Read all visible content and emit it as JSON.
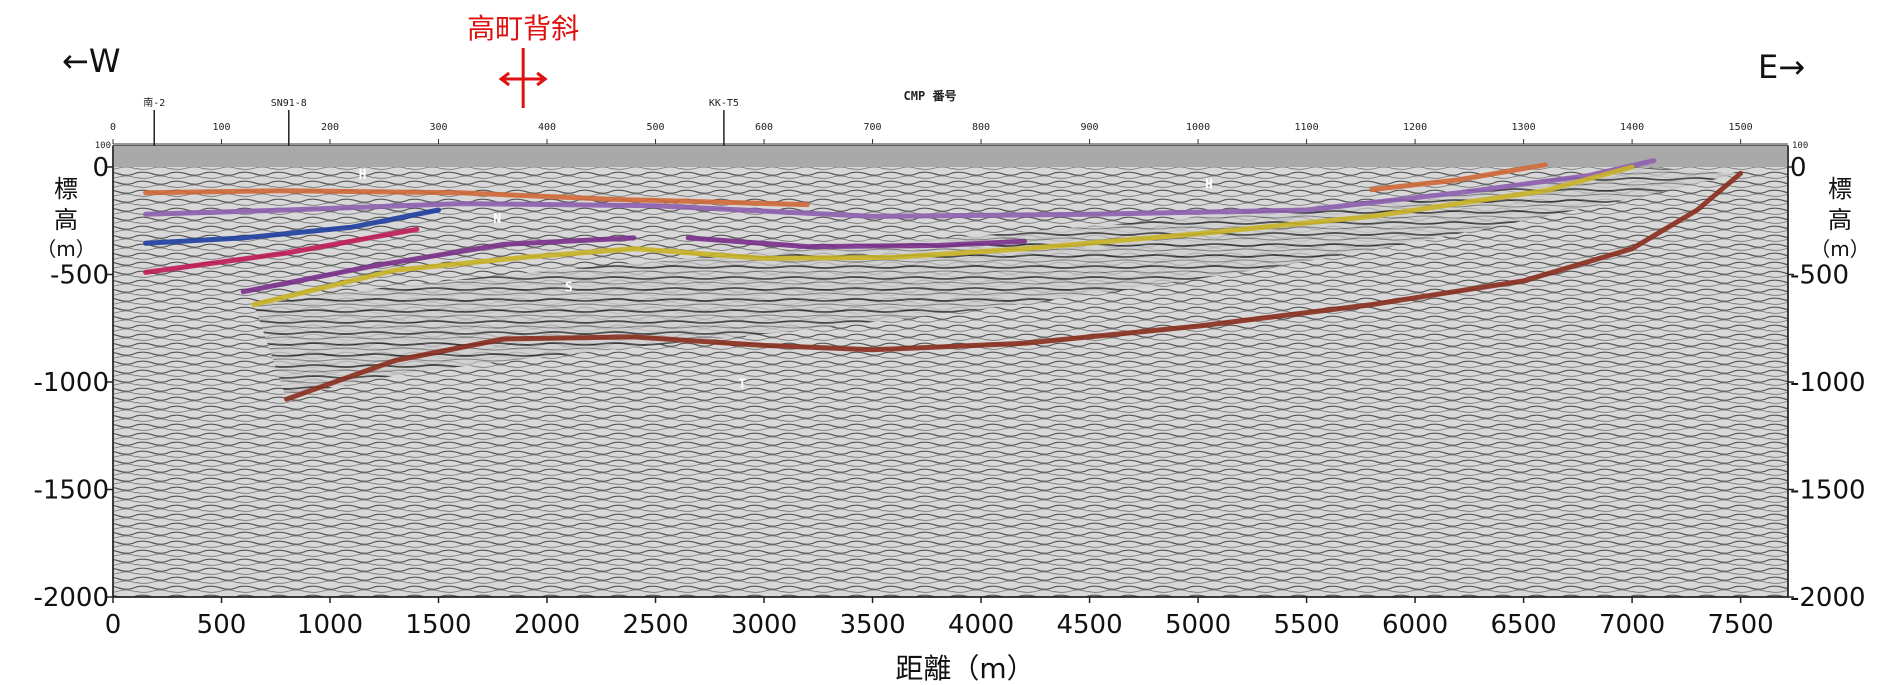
{
  "chart_data": {
    "type": "line",
    "title": "",
    "annotation": {
      "label": "高町背斜",
      "color": "#e01010",
      "x_m": 1890
    },
    "direction_left": "←W",
    "direction_right": "E→",
    "xlabel": "距離（m）",
    "ylabel_left": "標高（m）",
    "ylabel_right": "標高（m）",
    "ylabel_chars": [
      "標",
      "高",
      "（m）"
    ],
    "x_range_m": [
      0,
      7700
    ],
    "y_range_m": [
      -2000,
      100
    ],
    "x_ticks": [
      "0",
      "500",
      "1000",
      "1500",
      "2000",
      "2500",
      "3000",
      "3500",
      "4000",
      "4500",
      "5000",
      "5500",
      "6000",
      "6500",
      "7000",
      "7500"
    ],
    "x_tick_values": [
      0,
      500,
      1000,
      1500,
      2000,
      2500,
      3000,
      3500,
      4000,
      4500,
      5000,
      5500,
      6000,
      6500,
      7000,
      7500
    ],
    "y_ticks": [
      "0",
      "-500",
      "-1000",
      "-1500",
      "-2000"
    ],
    "y_tick_values": [
      0,
      -500,
      -1000,
      -1500,
      -2000
    ],
    "cmp_axis": {
      "title": "CMP 番号",
      "ticks": [
        "0",
        "100",
        "200",
        "300",
        "400",
        "500",
        "600",
        "700",
        "800",
        "900",
        "1000",
        "1100",
        "1200",
        "1300",
        "1400",
        "1500"
      ],
      "tick_values": [
        0,
        100,
        200,
        300,
        400,
        500,
        600,
        700,
        800,
        900,
        1000,
        1100,
        1200,
        1300,
        1400,
        1500
      ],
      "m_per_cmp": 5,
      "edge_labels": [
        "100",
        "100"
      ]
    },
    "wells": [
      {
        "label": "南-2",
        "cmp": 38
      },
      {
        "label": "SN91-8",
        "cmp": 162
      },
      {
        "label": "KK-T5",
        "cmp": 563
      }
    ],
    "horizon_labels": [
      {
        "label": "H",
        "x_m": 1150,
        "y_m": -55
      },
      {
        "label": "H",
        "x_m": 5050,
        "y_m": -100
      },
      {
        "label": "N",
        "x_m": 1770,
        "y_m": -260
      },
      {
        "label": "S",
        "x_m": 2100,
        "y_m": -580
      },
      {
        "label": "T",
        "x_m": 2900,
        "y_m": -1030
      }
    ],
    "series": [
      {
        "color": "#d06a3a",
        "points": [
          [
            150,
            -120
          ],
          [
            800,
            -110
          ],
          [
            1600,
            -120
          ],
          [
            2300,
            -150
          ],
          [
            3200,
            -175
          ]
        ]
      },
      {
        "color": "#d06a3a",
        "points": [
          [
            5800,
            -105
          ],
          [
            6200,
            -60
          ],
          [
            6600,
            10
          ]
        ]
      },
      {
        "color": "#8e5fb0",
        "points": [
          [
            150,
            -220
          ],
          [
            800,
            -200
          ],
          [
            1600,
            -170
          ],
          [
            2500,
            -180
          ],
          [
            3500,
            -230
          ],
          [
            4500,
            -220
          ],
          [
            5500,
            -200
          ],
          [
            6200,
            -120
          ],
          [
            6800,
            -40
          ],
          [
            7100,
            30
          ]
        ]
      },
      {
        "color": "#1e3fa0",
        "points": [
          [
            150,
            -355
          ],
          [
            600,
            -330
          ],
          [
            1100,
            -280
          ],
          [
            1500,
            -200
          ]
        ]
      },
      {
        "color": "#c01a56",
        "points": [
          [
            150,
            -490
          ],
          [
            800,
            -400
          ],
          [
            1400,
            -290
          ]
        ]
      },
      {
        "color": "#7a2f8a",
        "points": [
          [
            600,
            -580
          ],
          [
            1200,
            -460
          ],
          [
            1800,
            -360
          ],
          [
            2400,
            -330
          ]
        ]
      },
      {
        "color": "#7a2f8a",
        "points": [
          [
            2650,
            -330
          ],
          [
            3200,
            -370
          ],
          [
            3800,
            -365
          ],
          [
            4200,
            -345
          ]
        ]
      },
      {
        "color": "#c9b326",
        "points": [
          [
            650,
            -640
          ],
          [
            1300,
            -480
          ],
          [
            1900,
            -420
          ],
          [
            2400,
            -380
          ],
          [
            3000,
            -425
          ],
          [
            3600,
            -420
          ],
          [
            4200,
            -380
          ],
          [
            5000,
            -310
          ],
          [
            5800,
            -230
          ],
          [
            6600,
            -110
          ],
          [
            7000,
            0
          ]
        ]
      },
      {
        "color": "#8a2d1e",
        "points": [
          [
            800,
            -1080
          ],
          [
            1300,
            -900
          ],
          [
            1800,
            -800
          ],
          [
            2400,
            -790
          ],
          [
            3000,
            -830
          ],
          [
            3500,
            -850
          ],
          [
            4200,
            -820
          ],
          [
            5000,
            -740
          ],
          [
            5800,
            -640
          ],
          [
            6500,
            -530
          ],
          [
            7000,
            -380
          ],
          [
            7300,
            -200
          ],
          [
            7500,
            -30
          ]
        ]
      }
    ]
  }
}
